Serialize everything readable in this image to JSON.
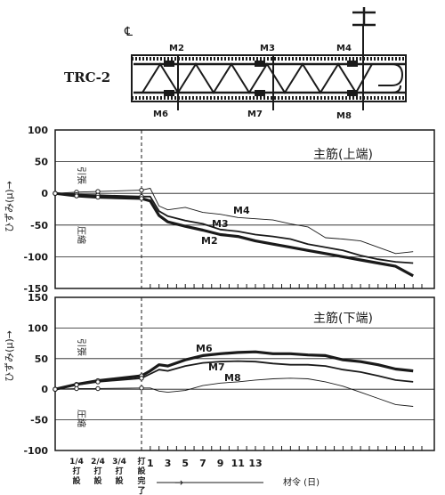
{
  "diagram": {
    "specimen": "TRC-2",
    "centerline": "℄",
    "gauges_top": [
      "M2",
      "M3",
      "M4"
    ],
    "gauges_bottom": [
      "M6",
      "M7",
      "M8"
    ]
  },
  "x_axis": {
    "label": "材令 (日)",
    "arrow": "→",
    "stage_ticks": [
      {
        "line1": "1/4",
        "line2": "打",
        "line3": "設"
      },
      {
        "line1": "2/4",
        "line2": "打",
        "line3": "設"
      },
      {
        "line1": "3/4",
        "line2": "打",
        "line3": "設"
      },
      {
        "line1": "打",
        "line2": "設",
        "line3": "完",
        "line4": "了"
      }
    ],
    "day_ticks": [
      "1",
      "3",
      "5",
      "7",
      "9",
      "11",
      "13"
    ]
  },
  "chart_data": [
    {
      "type": "line",
      "title": "主筋(上端)",
      "ylabel": "ひずみ(μ)→",
      "ylim": [
        -150,
        100
      ],
      "yticks": [
        "100",
        "50",
        "0",
        "-50",
        "-100",
        "-150"
      ],
      "zone_tension": "引張",
      "zone_compression": "圧縮",
      "grid": "horizontal",
      "stage_end_marker": "dashed vertical line at 打設完了",
      "x_note": "x: 0-3 = casting stages (1/4, 2/4, 3/4, 打設完了); then age in days 1-13",
      "series": [
        {
          "name": "M4",
          "x": [
            0,
            1,
            2,
            3,
            4,
            5,
            6,
            8,
            10,
            12,
            14,
            16,
            18,
            20,
            22,
            24,
            26,
            28,
            30,
            32,
            34
          ],
          "y": [
            0,
            2,
            3,
            5,
            8,
            -20,
            -26,
            -22,
            -30,
            -33,
            -38,
            -40,
            -42,
            -48,
            -53,
            -70,
            -72,
            -75,
            -85,
            -95,
            -92
          ]
        },
        {
          "name": "M3",
          "x": [
            0,
            1,
            2,
            3,
            4,
            5,
            6,
            8,
            10,
            12,
            14,
            16,
            18,
            20,
            22,
            24,
            26,
            28,
            30,
            32,
            34
          ],
          "y": [
            0,
            -2,
            -3,
            -5,
            -5,
            -28,
            -36,
            -43,
            -48,
            -57,
            -60,
            -65,
            -68,
            -72,
            -80,
            -85,
            -90,
            -98,
            -104,
            -108,
            -110
          ]
        },
        {
          "name": "M2",
          "x": [
            0,
            1,
            2,
            3,
            4,
            5,
            6,
            8,
            10,
            12,
            14,
            16,
            18,
            20,
            22,
            24,
            26,
            28,
            30,
            32,
            34
          ],
          "y": [
            0,
            -4,
            -6,
            -8,
            -12,
            -35,
            -45,
            -52,
            -58,
            -65,
            -68,
            -75,
            -80,
            -85,
            -90,
            -95,
            -100,
            -105,
            -110,
            -115,
            -130
          ]
        }
      ]
    },
    {
      "type": "line",
      "title": "主筋(下端)",
      "ylabel": "ひずみ(μ)→",
      "ylim": [
        -100,
        150
      ],
      "yticks": [
        "150",
        "100",
        "50",
        "0",
        "-50",
        "-100"
      ],
      "zone_tension": "引張",
      "zone_compression": "圧縮",
      "grid": "horizontal",
      "stage_end_marker": "dashed vertical line at 打設完了",
      "series": [
        {
          "name": "M6",
          "x": [
            0,
            1,
            2,
            3,
            4,
            5,
            6,
            8,
            10,
            12,
            14,
            16,
            18,
            20,
            22,
            24,
            26,
            28,
            30,
            32,
            34
          ],
          "y": [
            0,
            8,
            14,
            22,
            30,
            40,
            38,
            48,
            55,
            58,
            60,
            61,
            58,
            58,
            56,
            55,
            48,
            45,
            40,
            33,
            30
          ]
        },
        {
          "name": "M7",
          "x": [
            0,
            1,
            2,
            3,
            4,
            5,
            6,
            8,
            10,
            12,
            14,
            16,
            18,
            20,
            22,
            24,
            26,
            28,
            30,
            32,
            34
          ],
          "y": [
            0,
            7,
            12,
            18,
            25,
            32,
            30,
            38,
            43,
            45,
            46,
            45,
            42,
            40,
            40,
            38,
            32,
            28,
            22,
            15,
            12
          ]
        },
        {
          "name": "M8",
          "x": [
            0,
            1,
            2,
            3,
            4,
            5,
            6,
            8,
            10,
            12,
            14,
            16,
            18,
            20,
            22,
            24,
            26,
            28,
            30,
            32,
            34
          ],
          "y": [
            0,
            1,
            1,
            2,
            2,
            -3,
            -5,
            -2,
            6,
            10,
            12,
            15,
            17,
            18,
            17,
            12,
            5,
            -5,
            -15,
            -25,
            -28
          ]
        }
      ]
    }
  ]
}
